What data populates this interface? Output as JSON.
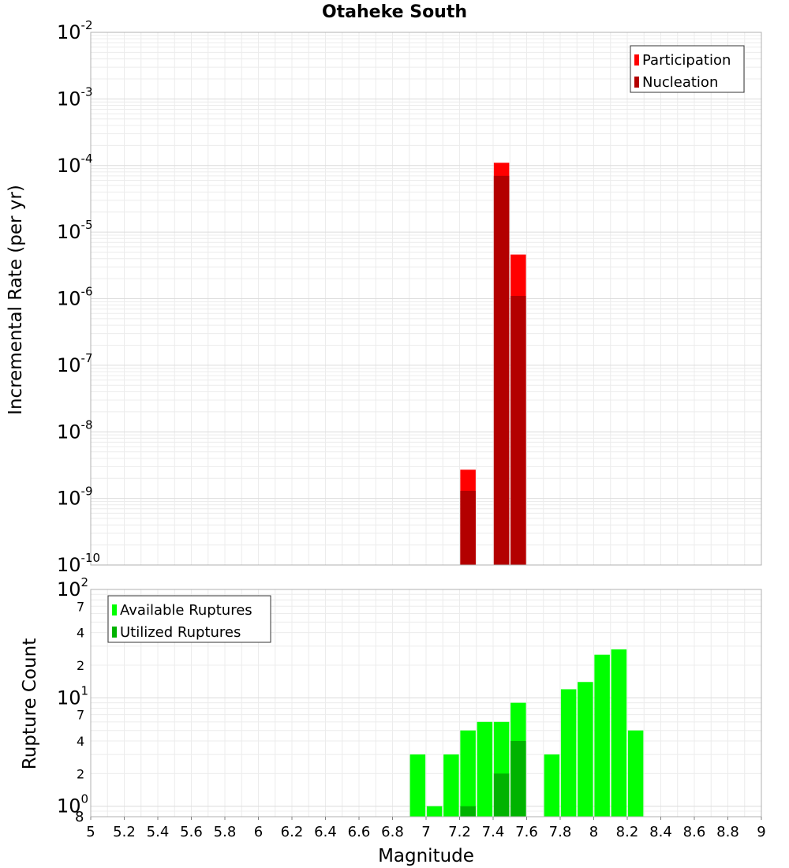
{
  "chart_data": [
    {
      "type": "bar",
      "title": "Otaheke South",
      "xlabel": "",
      "ylabel": "Incremental Rate (per yr)",
      "yscale": "log",
      "ylim": [
        1e-10,
        0.01
      ],
      "xlim": [
        5,
        9
      ],
      "grid": true,
      "legend_position": "top-right",
      "series": [
        {
          "name": "Participation",
          "color": "#ff0000",
          "x": [
            7.25,
            7.45,
            7.55
          ],
          "values": [
            2.7e-09,
            0.00011,
            4.6e-06
          ]
        },
        {
          "name": "Nucleation",
          "color": "#b30000",
          "x": [
            7.25,
            7.45,
            7.55
          ],
          "values": [
            1.3e-09,
            7e-05,
            1.1e-06
          ]
        }
      ],
      "yticks": [
        {
          "base": "10",
          "exp": "-10"
        },
        {
          "base": "10",
          "exp": "-9"
        },
        {
          "base": "10",
          "exp": "-8"
        },
        {
          "base": "10",
          "exp": "-7"
        },
        {
          "base": "10",
          "exp": "-6"
        },
        {
          "base": "10",
          "exp": "-5"
        },
        {
          "base": "10",
          "exp": "-4"
        },
        {
          "base": "10",
          "exp": "-3"
        },
        {
          "base": "10",
          "exp": "-2"
        }
      ]
    },
    {
      "type": "bar",
      "title": "",
      "xlabel": "Magnitude",
      "ylabel": "Rupture Count",
      "yscale": "log",
      "ylim": [
        0.8,
        100
      ],
      "xlim": [
        5,
        9
      ],
      "grid": true,
      "legend_position": "top-left",
      "series": [
        {
          "name": "Available Ruptures",
          "color": "#00ff00",
          "x": [
            6.95,
            7.05,
            7.15,
            7.25,
            7.35,
            7.45,
            7.55,
            7.75,
            7.85,
            7.95,
            8.05,
            8.15,
            8.25
          ],
          "values": [
            3,
            1,
            3,
            5,
            6,
            6,
            9,
            3,
            12,
            14,
            25,
            28,
            5
          ]
        },
        {
          "name": "Utilized Ruptures",
          "color": "#00b300",
          "x": [
            7.25,
            7.45,
            7.55
          ],
          "values": [
            1,
            2,
            4
          ]
        }
      ],
      "yticks": [
        {
          "base": "10",
          "exp": "2"
        },
        {
          "minor": "7"
        },
        {
          "minor": "4"
        },
        {
          "minor": "2"
        },
        {
          "base": "10",
          "exp": "1"
        },
        {
          "minor": "7"
        },
        {
          "minor": "4"
        },
        {
          "minor": "2"
        },
        {
          "base": "10",
          "exp": "0"
        },
        {
          "minor": "8"
        }
      ]
    }
  ],
  "x_ticks": [
    "5",
    "5.2",
    "5.4",
    "5.6",
    "5.8",
    "6",
    "6.2",
    "6.4",
    "6.6",
    "6.8",
    "7",
    "7.2",
    "7.4",
    "7.6",
    "7.8",
    "8",
    "8.2",
    "8.4",
    "8.6",
    "8.8",
    "9"
  ]
}
